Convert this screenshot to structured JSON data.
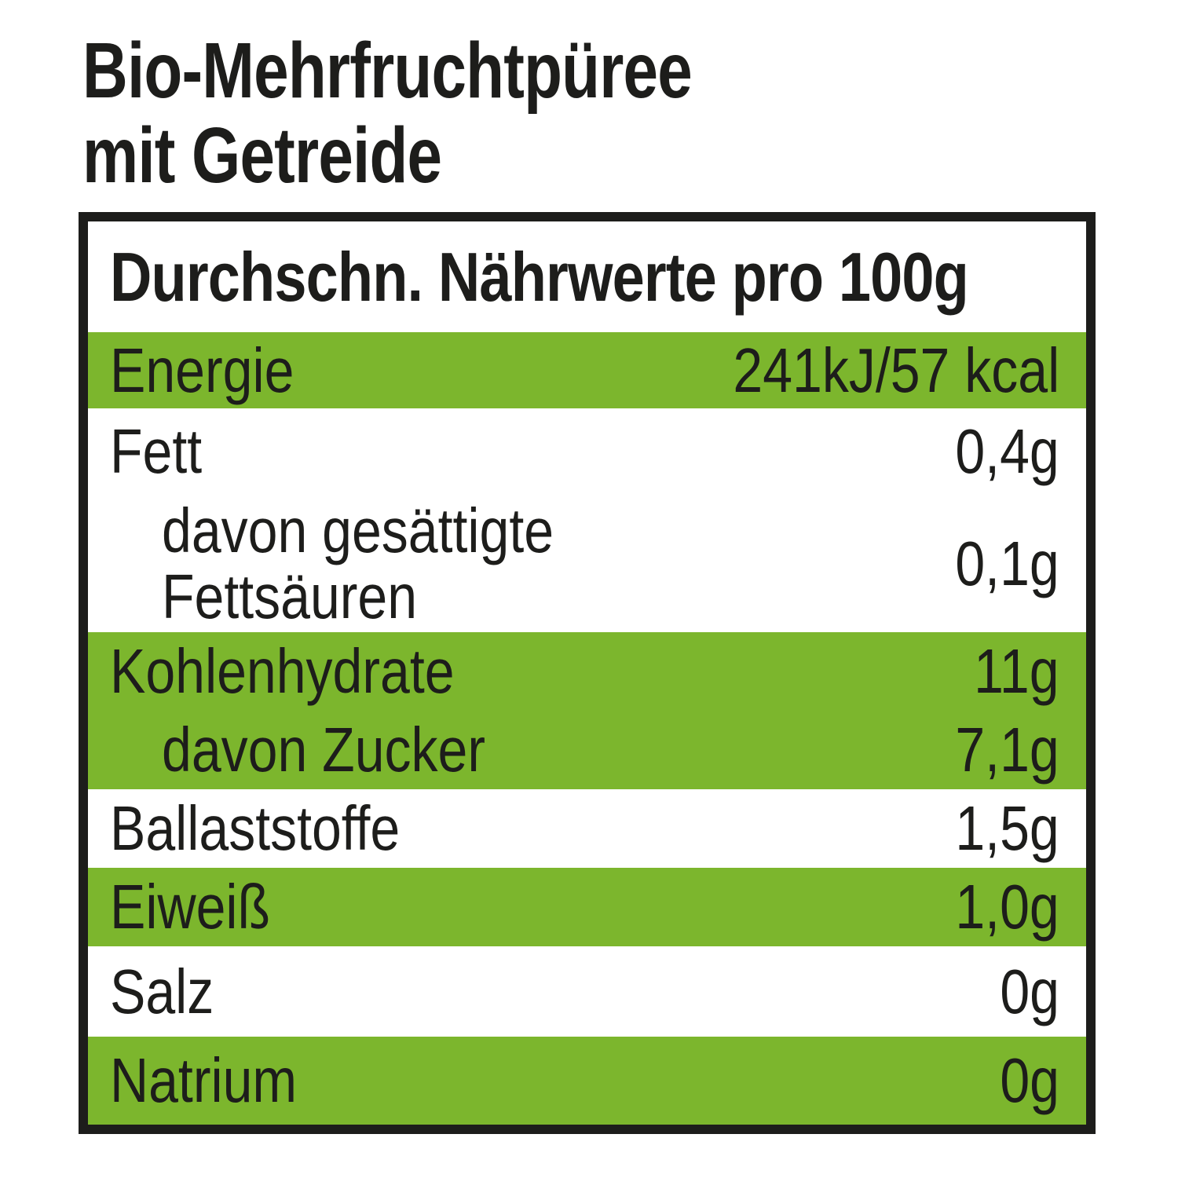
{
  "title": {
    "line1": "Bio-Mehrfruchtpüree",
    "line2": "mit Getreide"
  },
  "table": {
    "header": "Durchschn. Nährwerte pro 100g",
    "rows": [
      {
        "label": "Energie",
        "value": "241kJ/57 kcal"
      },
      {
        "label": "Fett",
        "value": "0,4g"
      },
      {
        "label": "davon gesättigte\nFettsäuren",
        "value": "0,1g"
      },
      {
        "label": "Kohlenhydrate",
        "value": "11g"
      },
      {
        "label": "davon Zucker",
        "value": "7,1g"
      },
      {
        "label": "Ballaststoffe",
        "value": "1,5g"
      },
      {
        "label": "Eiweiß",
        "value": "1,0g"
      },
      {
        "label": "Salz",
        "value": "0g"
      },
      {
        "label": "Natrium",
        "value": "0g"
      }
    ]
  },
  "colors": {
    "green": "#7cb62d",
    "text": "#1d1d1b",
    "background": "#ffffff"
  }
}
